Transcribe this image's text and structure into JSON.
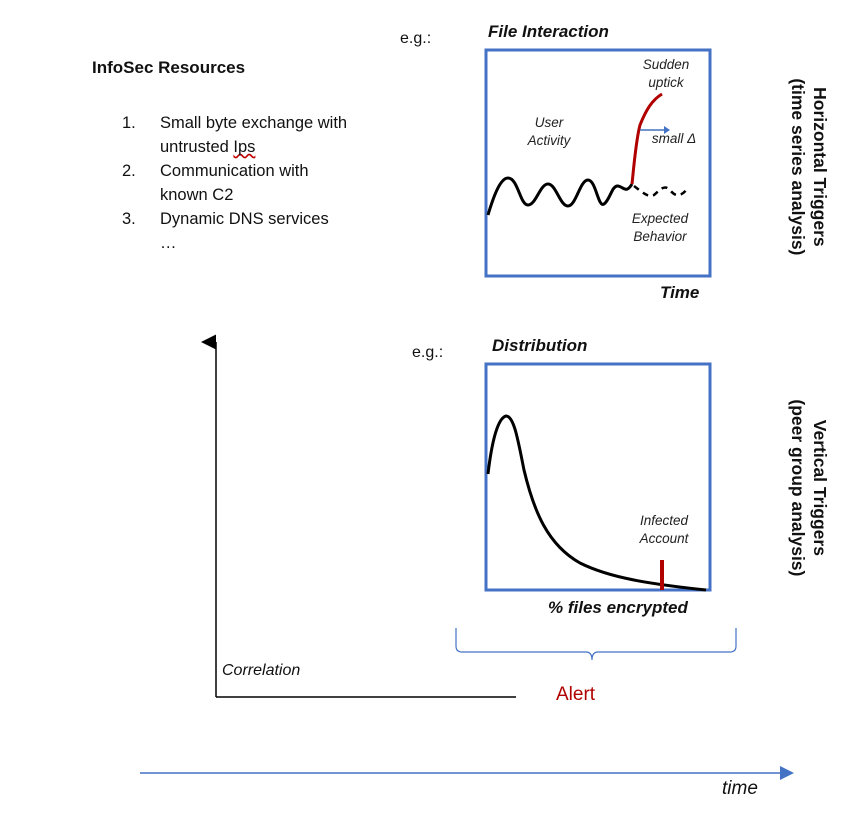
{
  "infosec": {
    "title": "InfoSec Resources",
    "items": [
      {
        "num": "1.",
        "text": "Small byte exchange with untrusted ",
        "underlined": "Ips"
      },
      {
        "num": "2.",
        "text": "Communication with known C2"
      },
      {
        "num": "3.",
        "text": "Dynamic DNS services"
      }
    ],
    "ellipsis": "…"
  },
  "horizontal": {
    "eg": "e.g.:",
    "title": "File Interaction",
    "user_activity": "User Activity",
    "sudden_uptick": "Sudden uptick",
    "small_delta": "small Δ",
    "expected_behavior": "Expected Behavior",
    "x_axis": "Time",
    "side_label_1": "Horizontal Triggers",
    "side_label_2": "(time series analysis)"
  },
  "vertical": {
    "eg": "e.g.:",
    "title": "Distribution",
    "infected_account": "Infected Account",
    "x_axis": "% files encrypted",
    "side_label_1": "Vertical Triggers",
    "side_label_2": "(peer group analysis)"
  },
  "correlation": "Correlation",
  "alert": "Alert",
  "time": "time",
  "colors": {
    "panel_border": "#4472c4",
    "trend_red": "#b00000",
    "arrow_blue": "#4472c4",
    "alert_red": "#b00000"
  }
}
